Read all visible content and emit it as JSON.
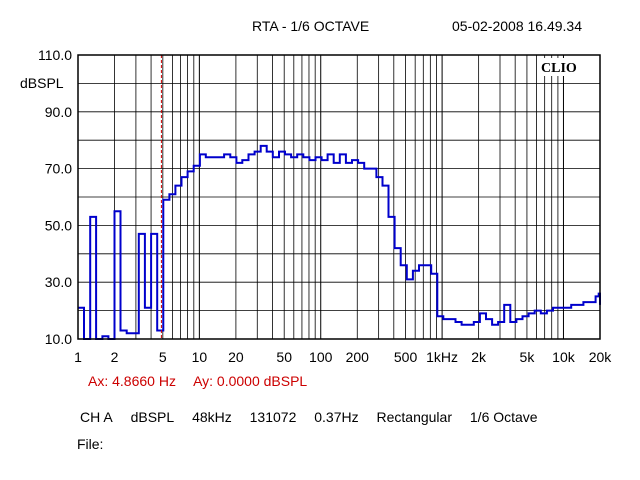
{
  "header": {
    "title": "RTA - 1/6 OCTAVE",
    "datetime": "05-02-2008 16.49.34"
  },
  "logo_text": "CLIO",
  "cursor": {
    "ax": "Ax: 4.8660 Hz",
    "ay": "Ay: 0.0000 dBSPL",
    "x_value_hz": 4.866
  },
  "settings": {
    "channel": "CH A",
    "unit": "dBSPL",
    "sample_rate": "48kHz",
    "fft_size": "131072",
    "resolution": "0.37Hz",
    "window": "Rectangular",
    "smoothing": "1/6 Octave"
  },
  "file_label": "File:",
  "colors": {
    "trace": "#0000cc",
    "cursor": "#cc0000",
    "grid": "#000000"
  },
  "chart_data": {
    "type": "line",
    "title": "RTA - 1/6 OCTAVE",
    "ylabel": "dBSPL",
    "xlabel": "",
    "x_scale": "log",
    "xlim": [
      1,
      20000
    ],
    "ylim": [
      10,
      110
    ],
    "y_ticks": [
      10,
      30,
      50,
      70,
      90,
      110
    ],
    "y_tick_labels": [
      "10.0",
      "30.0",
      "50.0",
      "70.0",
      "90.0",
      "110.0"
    ],
    "x_ticks": [
      1,
      2,
      5,
      10,
      20,
      50,
      100,
      200,
      500,
      1000,
      2000,
      5000,
      10000,
      20000
    ],
    "x_tick_labels": [
      "1",
      "2",
      "5",
      "10",
      "20",
      "50",
      "100",
      "200",
      "500",
      "1kHz",
      "2k",
      "5k",
      "10k",
      "20k"
    ],
    "grid": true,
    "series": [
      {
        "steps": [
          [
            1.0,
            21
          ],
          [
            1.12,
            10
          ],
          [
            1.26,
            53
          ],
          [
            1.41,
            10
          ],
          [
            1.59,
            11
          ],
          [
            1.78,
            10
          ],
          [
            2.0,
            55
          ],
          [
            2.24,
            13
          ],
          [
            2.52,
            12
          ],
          [
            2.83,
            12
          ],
          [
            3.17,
            47
          ],
          [
            3.56,
            21
          ],
          [
            4.0,
            47
          ],
          [
            4.49,
            13
          ],
          [
            5.04,
            59
          ],
          [
            5.66,
            61
          ],
          [
            6.35,
            64
          ],
          [
            7.13,
            67
          ],
          [
            8.0,
            69
          ],
          [
            8.98,
            71
          ],
          [
            10.1,
            75
          ],
          [
            11.3,
            74
          ],
          [
            12.7,
            74
          ],
          [
            14.3,
            74
          ],
          [
            16.0,
            75
          ],
          [
            18.0,
            74
          ],
          [
            20.2,
            72
          ],
          [
            22.6,
            73
          ],
          [
            25.4,
            75
          ],
          [
            28.5,
            76
          ],
          [
            32.0,
            78
          ],
          [
            35.9,
            76
          ],
          [
            40.3,
            74
          ],
          [
            45.3,
            76
          ],
          [
            50.8,
            75
          ],
          [
            57.0,
            74
          ],
          [
            64.0,
            75
          ],
          [
            71.8,
            74
          ],
          [
            80.6,
            73
          ],
          [
            90.5,
            74
          ],
          [
            101.6,
            73
          ],
          [
            114.0,
            75
          ],
          [
            128.0,
            72
          ],
          [
            143.7,
            75
          ],
          [
            161.3,
            72
          ],
          [
            181.0,
            73
          ],
          [
            203.2,
            72
          ],
          [
            228.1,
            70
          ],
          [
            256.0,
            70
          ],
          [
            287.4,
            67
          ],
          [
            322.5,
            64
          ],
          [
            362.0,
            53
          ],
          [
            406.4,
            42
          ],
          [
            456.1,
            36
          ],
          [
            512.0,
            31
          ],
          [
            574.7,
            34
          ],
          [
            645.1,
            36
          ],
          [
            724.1,
            36
          ],
          [
            812.7,
            33
          ],
          [
            912.3,
            18
          ],
          [
            1024,
            17
          ],
          [
            1149,
            17
          ],
          [
            1290,
            16
          ],
          [
            1448,
            15
          ],
          [
            1625,
            15
          ],
          [
            1825,
            16
          ],
          [
            2048,
            19
          ],
          [
            2299,
            17
          ],
          [
            2580,
            15
          ],
          [
            2896,
            16
          ],
          [
            3251,
            22
          ],
          [
            3649,
            16
          ],
          [
            4096,
            17
          ],
          [
            4598,
            18
          ],
          [
            5161,
            19
          ],
          [
            5793,
            20
          ],
          [
            6502,
            19
          ],
          [
            7298,
            20
          ],
          [
            8192,
            21
          ],
          [
            9195,
            21
          ],
          [
            10321,
            21
          ],
          [
            11585,
            22
          ],
          [
            13004,
            22
          ],
          [
            14596,
            23
          ],
          [
            16384,
            23
          ],
          [
            18390,
            25
          ],
          [
            19500,
            26
          ],
          [
            20000,
            22
          ]
        ]
      }
    ]
  }
}
